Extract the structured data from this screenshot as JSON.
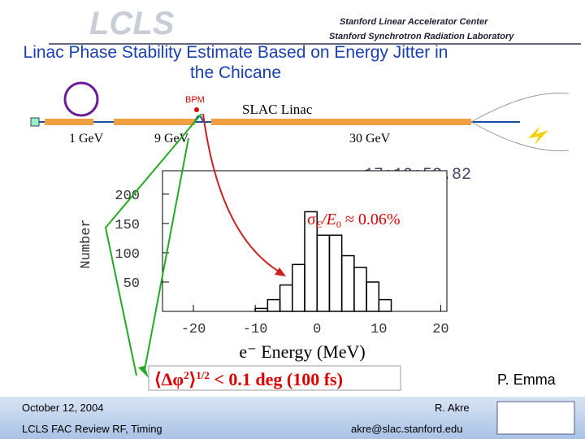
{
  "header": {
    "logo": "LCLS",
    "org1": "Stanford Linear Accelerator Center",
    "org2": "Stanford Synchrotron Radiation Laboratory"
  },
  "title": "Linac Phase Stability Estimate Based on Energy Jitter in the Chicane",
  "diagram": {
    "bpm": "BPM",
    "linac": "SLAC Linac",
    "e1": "1 GeV",
    "e2": "9 GeV",
    "e3": "30 GeV"
  },
  "timestamp": "17:10:53.82",
  "spread": {
    "sigma": "σ",
    "sub": "E",
    "mid": "/E",
    "sub2": "0",
    "tail": " ≈ 0.06%"
  },
  "jitter": {
    "open": "⟨Δφ",
    "sup": "2",
    "close": "⟩",
    "sup2": "1/2",
    "tail": " < 0.1 deg (100 fs)"
  },
  "author": "P. Emma",
  "footer": {
    "date": "October 12, 2004",
    "event": "LCLS FAC Review RF, Timing",
    "presenter": "R. Akre",
    "email": "akre@slac.stanford.edu"
  },
  "chart_data": {
    "type": "histogram",
    "ylabel": "Number",
    "xlabel": "e⁻ Energy (MeV)",
    "bins": [
      -10,
      -8,
      -6,
      -4,
      -2,
      0,
      2,
      4,
      6,
      8,
      10,
      12
    ],
    "values": [
      5,
      20,
      45,
      80,
      170,
      130,
      130,
      95,
      75,
      50,
      20
    ],
    "xlim": [
      -25,
      21
    ],
    "ylim": [
      0,
      240
    ],
    "xticks": [
      -20,
      -10,
      0,
      10,
      20
    ],
    "yticks": [
      50,
      100,
      150,
      200
    ]
  }
}
